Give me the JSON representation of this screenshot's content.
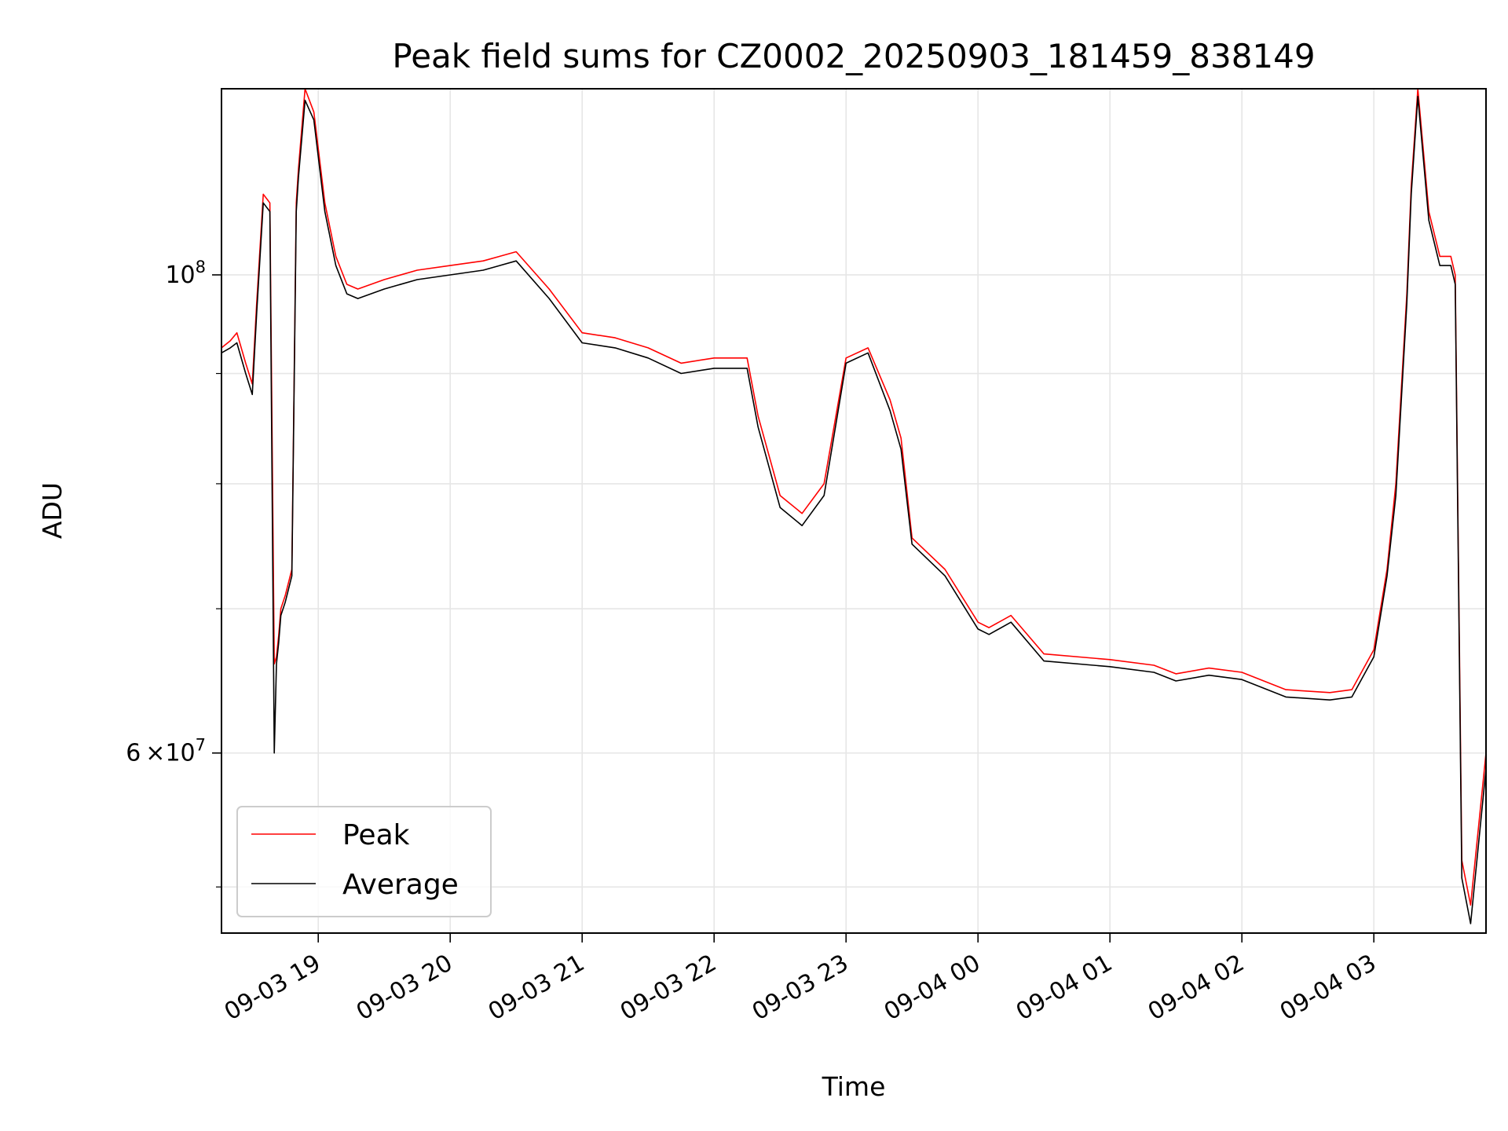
{
  "chart_data": {
    "type": "line",
    "title": "Peak field sums for CZ0002_20250903_181459_838149",
    "xlabel": "Time",
    "ylabel": "ADU",
    "yscale": "log",
    "ylim": [
      49500000,
      122000000
    ],
    "xlim": [
      "2025-09-03 18:16",
      "2025-09-04 03:51"
    ],
    "x_tick_labels": [
      "09-03 19",
      "09-03 20",
      "09-03 21",
      "09-03 22",
      "09-03 23",
      "09-04 00",
      "09-04 01",
      "09-04 02",
      "09-04 03"
    ],
    "y_tick_labels": [
      {
        "value": 100000000,
        "mantissa": "",
        "base": "10",
        "exp": "8"
      },
      {
        "value": 60000000,
        "mantissa": "6",
        "times": "×",
        "base": "10",
        "exp": "7"
      }
    ],
    "y_minor_ticks": [
      52000000,
      70000000,
      80000000,
      90000000
    ],
    "grid": true,
    "legend_position": "lower-left",
    "series": [
      {
        "name": "Peak",
        "color": "#ff0000",
        "x": [
          "2025-09-03 18:16",
          "2025-09-03 18:20",
          "2025-09-03 18:23",
          "2025-09-03 18:27",
          "2025-09-03 18:30",
          "2025-09-03 18:32",
          "2025-09-03 18:35",
          "2025-09-03 18:38",
          "2025-09-03 18:40",
          "2025-09-03 18:41",
          "2025-09-03 18:42",
          "2025-09-03 18:43",
          "2025-09-03 18:45",
          "2025-09-03 18:48",
          "2025-09-03 18:50",
          "2025-09-03 18:51",
          "2025-09-03 18:54",
          "2025-09-03 18:58",
          "2025-09-03 19:03",
          "2025-09-03 19:08",
          "2025-09-03 19:13",
          "2025-09-03 19:18",
          "2025-09-03 19:30",
          "2025-09-03 19:45",
          "2025-09-03 20:00",
          "2025-09-03 20:15",
          "2025-09-03 20:30",
          "2025-09-03 20:45",
          "2025-09-03 21:00",
          "2025-09-03 21:15",
          "2025-09-03 21:30",
          "2025-09-03 21:45",
          "2025-09-03 22:00",
          "2025-09-03 22:15",
          "2025-09-03 22:20",
          "2025-09-03 22:30",
          "2025-09-03 22:40",
          "2025-09-03 22:50",
          "2025-09-03 23:00",
          "2025-09-03 23:10",
          "2025-09-03 23:20",
          "2025-09-03 23:25",
          "2025-09-03 23:30",
          "2025-09-03 23:45",
          "2025-09-04 00:00",
          "2025-09-04 00:05",
          "2025-09-04 00:15",
          "2025-09-04 00:30",
          "2025-09-04 01:00",
          "2025-09-04 01:20",
          "2025-09-04 01:30",
          "2025-09-04 01:45",
          "2025-09-04 02:00",
          "2025-09-04 02:20",
          "2025-09-04 02:40",
          "2025-09-04 02:50",
          "2025-09-04 03:00",
          "2025-09-04 03:06",
          "2025-09-04 03:10",
          "2025-09-04 03:15",
          "2025-09-04 03:17",
          "2025-09-04 03:20",
          "2025-09-04 03:25",
          "2025-09-04 03:30",
          "2025-09-04 03:35",
          "2025-09-04 03:37",
          "2025-09-04 03:40",
          "2025-09-04 03:44",
          "2025-09-04 03:51"
        ],
        "values": [
          92500000,
          93200000,
          94000000,
          91000000,
          89000000,
          97000000,
          109000000,
          108000000,
          66000000,
          66500000,
          68000000,
          70000000,
          71000000,
          73000000,
          108000000,
          112000000,
          122000000,
          119000000,
          108000000,
          102000000,
          99000000,
          98500000,
          99500000,
          100500000,
          101000000,
          101500000,
          102500000,
          98500000,
          94000000,
          93500000,
          92500000,
          91000000,
          91500000,
          91500000,
          86000000,
          79000000,
          77500000,
          80000000,
          91500000,
          92500000,
          87500000,
          84000000,
          75500000,
          73000000,
          69000000,
          68600000,
          69500000,
          66700000,
          66300000,
          65900000,
          65300000,
          65700000,
          65400000,
          64200000,
          64000000,
          64200000,
          67000000,
          73000000,
          80000000,
          98000000,
          110000000,
          122000000,
          107000000,
          102000000,
          102000000,
          100000000,
          53500000,
          51000000,
          60000000
        ]
      },
      {
        "name": "Average",
        "color": "#000000",
        "x": [
          "2025-09-03 18:16",
          "2025-09-03 18:20",
          "2025-09-03 18:23",
          "2025-09-03 18:27",
          "2025-09-03 18:30",
          "2025-09-03 18:32",
          "2025-09-03 18:35",
          "2025-09-03 18:38",
          "2025-09-03 18:40",
          "2025-09-03 18:41",
          "2025-09-03 18:42",
          "2025-09-03 18:43",
          "2025-09-03 18:45",
          "2025-09-03 18:48",
          "2025-09-03 18:50",
          "2025-09-03 18:51",
          "2025-09-03 18:54",
          "2025-09-03 18:58",
          "2025-09-03 19:03",
          "2025-09-03 19:08",
          "2025-09-03 19:13",
          "2025-09-03 19:18",
          "2025-09-03 19:30",
          "2025-09-03 19:45",
          "2025-09-03 20:00",
          "2025-09-03 20:15",
          "2025-09-03 20:30",
          "2025-09-03 20:45",
          "2025-09-03 21:00",
          "2025-09-03 21:15",
          "2025-09-03 21:30",
          "2025-09-03 21:45",
          "2025-09-03 22:00",
          "2025-09-03 22:15",
          "2025-09-03 22:20",
          "2025-09-03 22:30",
          "2025-09-03 22:40",
          "2025-09-03 22:50",
          "2025-09-03 23:00",
          "2025-09-03 23:10",
          "2025-09-03 23:20",
          "2025-09-03 23:25",
          "2025-09-03 23:30",
          "2025-09-03 23:45",
          "2025-09-04 00:00",
          "2025-09-04 00:05",
          "2025-09-04 00:15",
          "2025-09-04 00:30",
          "2025-09-04 01:00",
          "2025-09-04 01:20",
          "2025-09-04 01:30",
          "2025-09-04 01:45",
          "2025-09-04 02:00",
          "2025-09-04 02:20",
          "2025-09-04 02:40",
          "2025-09-04 02:50",
          "2025-09-04 03:00",
          "2025-09-04 03:06",
          "2025-09-04 03:10",
          "2025-09-04 03:15",
          "2025-09-04 03:17",
          "2025-09-04 03:20",
          "2025-09-04 03:25",
          "2025-09-04 03:30",
          "2025-09-04 03:35",
          "2025-09-04 03:37",
          "2025-09-04 03:40",
          "2025-09-04 03:44",
          "2025-09-04 03:51"
        ],
        "values": [
          92000000,
          92500000,
          93000000,
          90000000,
          88000000,
          96000000,
          108000000,
          107000000,
          60000000,
          66000000,
          67500000,
          69500000,
          70500000,
          72500000,
          107000000,
          111000000,
          120500000,
          118000000,
          107000000,
          101000000,
          98000000,
          97500000,
          98500000,
          99500000,
          100000000,
          100500000,
          101500000,
          97500000,
          93000000,
          92500000,
          91500000,
          90000000,
          90500000,
          90500000,
          85000000,
          78000000,
          76500000,
          79000000,
          91000000,
          92000000,
          86500000,
          83000000,
          75000000,
          72500000,
          68500000,
          68100000,
          69000000,
          66200000,
          65800000,
          65400000,
          64800000,
          65200000,
          64900000,
          63700000,
          63500000,
          63700000,
          66500000,
          72500000,
          79000000,
          97000000,
          109000000,
          121000000,
          106000000,
          101000000,
          101000000,
          99000000,
          52500000,
          50000000,
          59000000
        ]
      }
    ]
  }
}
